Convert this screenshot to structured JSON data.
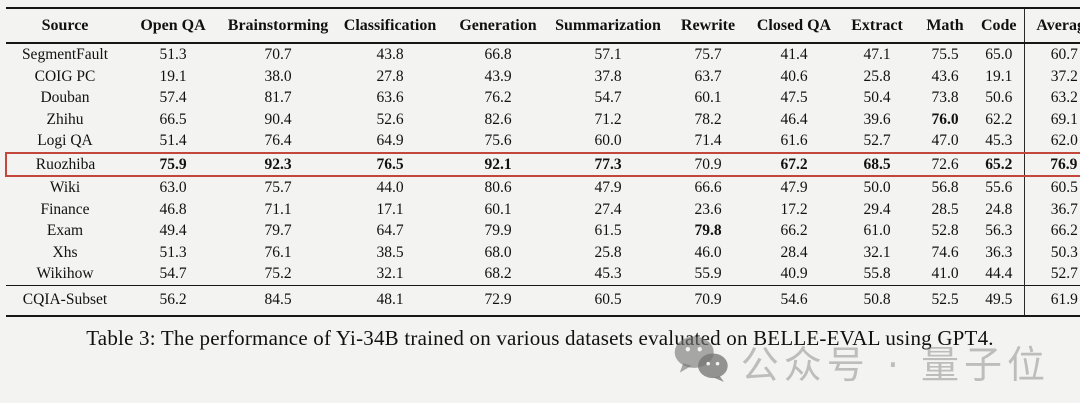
{
  "table": {
    "columns": [
      "Source",
      "Open QA",
      "Brainstorming",
      "Classification",
      "Generation",
      "Summarization",
      "Rewrite",
      "Closed QA",
      "Extract",
      "Math",
      "Code",
      "Average"
    ],
    "rows": [
      {
        "source": "SegmentFault",
        "values": [
          "51.3",
          "70.7",
          "43.8",
          "66.8",
          "57.1",
          "75.7",
          "41.4",
          "47.1",
          "75.5",
          "65.0",
          "60.7"
        ],
        "bold_value_indices": [],
        "highlighted": false,
        "section": "main"
      },
      {
        "source": "COIG PC",
        "values": [
          "19.1",
          "38.0",
          "27.8",
          "43.9",
          "37.8",
          "63.7",
          "40.6",
          "25.8",
          "43.6",
          "19.1",
          "37.2"
        ],
        "bold_value_indices": [],
        "highlighted": false,
        "section": "main"
      },
      {
        "source": "Douban",
        "values": [
          "57.4",
          "81.7",
          "63.6",
          "76.2",
          "54.7",
          "60.1",
          "47.5",
          "50.4",
          "73.8",
          "50.6",
          "63.2"
        ],
        "bold_value_indices": [],
        "highlighted": false,
        "section": "main"
      },
      {
        "source": "Zhihu",
        "values": [
          "66.5",
          "90.4",
          "52.6",
          "82.6",
          "71.2",
          "78.2",
          "46.4",
          "39.6",
          "76.0",
          "62.2",
          "69.1"
        ],
        "bold_value_indices": [
          8
        ],
        "highlighted": false,
        "section": "main"
      },
      {
        "source": "Logi QA",
        "values": [
          "51.4",
          "76.4",
          "64.9",
          "75.6",
          "60.0",
          "71.4",
          "61.6",
          "52.7",
          "47.0",
          "45.3",
          "62.0"
        ],
        "bold_value_indices": [],
        "highlighted": false,
        "section": "main"
      },
      {
        "source": "Ruozhiba",
        "values": [
          "75.9",
          "92.3",
          "76.5",
          "92.1",
          "77.3",
          "70.9",
          "67.2",
          "68.5",
          "72.6",
          "65.2",
          "76.9"
        ],
        "bold_value_indices": [
          0,
          1,
          2,
          3,
          4,
          6,
          7,
          9,
          10
        ],
        "highlighted": true,
        "section": "main"
      },
      {
        "source": "Wiki",
        "values": [
          "63.0",
          "75.7",
          "44.0",
          "80.6",
          "47.9",
          "66.6",
          "47.9",
          "50.0",
          "56.8",
          "55.6",
          "60.5"
        ],
        "bold_value_indices": [],
        "highlighted": false,
        "section": "main"
      },
      {
        "source": "Finance",
        "values": [
          "46.8",
          "71.1",
          "17.1",
          "60.1",
          "27.4",
          "23.6",
          "17.2",
          "29.4",
          "28.5",
          "24.8",
          "36.7"
        ],
        "bold_value_indices": [],
        "highlighted": false,
        "section": "main"
      },
      {
        "source": "Exam",
        "values": [
          "49.4",
          "79.7",
          "64.7",
          "79.9",
          "61.5",
          "79.8",
          "66.2",
          "61.0",
          "52.8",
          "56.3",
          "66.2"
        ],
        "bold_value_indices": [
          5
        ],
        "highlighted": false,
        "section": "main"
      },
      {
        "source": "Xhs",
        "values": [
          "51.3",
          "76.1",
          "38.5",
          "68.0",
          "25.8",
          "46.0",
          "28.4",
          "32.1",
          "74.6",
          "36.3",
          "50.3"
        ],
        "bold_value_indices": [],
        "highlighted": false,
        "section": "main"
      },
      {
        "source": "Wikihow",
        "values": [
          "54.7",
          "75.2",
          "32.1",
          "68.2",
          "45.3",
          "55.9",
          "40.9",
          "55.8",
          "41.0",
          "44.4",
          "52.7"
        ],
        "bold_value_indices": [],
        "highlighted": false,
        "section": "main"
      },
      {
        "source": "CQIA-Subset",
        "values": [
          "56.2",
          "84.5",
          "48.1",
          "72.9",
          "60.5",
          "70.9",
          "54.6",
          "50.8",
          "52.5",
          "49.5",
          "61.9"
        ],
        "bold_value_indices": [],
        "highlighted": false,
        "section": "footer"
      }
    ]
  },
  "caption": "Table 3: The performance of Yi-34B trained on various datasets evaluated on BELLE-EVAL using GPT4.",
  "watermark": {
    "icon": "wechat-icon",
    "text": "公众号 · 量子位"
  },
  "colors": {
    "background": "#f3f3f1",
    "rule": "#161616",
    "highlight_box": "#c4473b",
    "watermark_gray": "#7d7d7d"
  }
}
